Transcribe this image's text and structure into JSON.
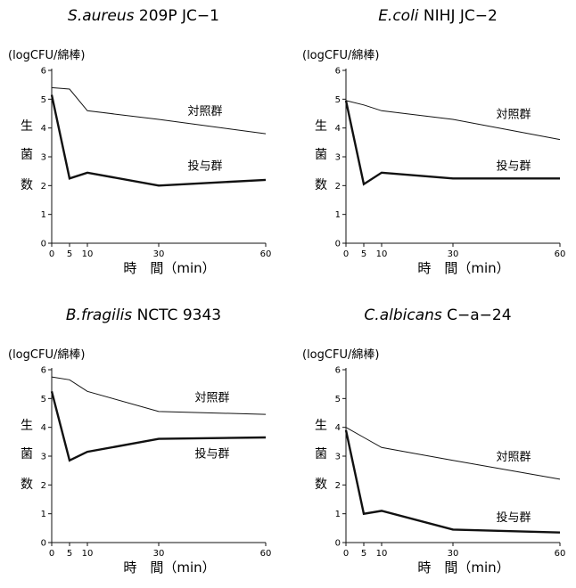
{
  "chart_data": [
    {
      "type": "line",
      "title_italic": "S.aureus",
      "title_rest": " 209P JC−1",
      "unit": "(logCFU/綿棒)",
      "ylabel_chars": [
        "生",
        "菌",
        "数"
      ],
      "xlabel": "時　間（min）",
      "xticks": [
        0,
        5,
        10,
        30,
        60
      ],
      "yticks": [
        0,
        1,
        2,
        3,
        4,
        5,
        6
      ],
      "xlim": [
        0,
        60
      ],
      "ylim": [
        0,
        6
      ],
      "series": [
        {
          "name": "対照群",
          "x": [
            0,
            5,
            10,
            30,
            60
          ],
          "y": [
            5.4,
            5.35,
            4.6,
            4.3,
            3.8
          ],
          "label_x": 43,
          "label_y": 4.45
        },
        {
          "name": "投与群",
          "x": [
            0,
            5,
            10,
            30,
            60
          ],
          "y": [
            5.15,
            2.25,
            2.45,
            2.0,
            2.2
          ],
          "label_x": 43,
          "label_y": 2.55
        }
      ]
    },
    {
      "type": "line",
      "title_italic": "E.coli",
      "title_rest": " NIHJ  JC−2",
      "unit": "(logCFU/綿棒)",
      "ylabel_chars": [
        "生",
        "菌",
        "数"
      ],
      "xlabel": "時　間（min）",
      "xticks": [
        0,
        5,
        10,
        30,
        60
      ],
      "yticks": [
        0,
        1,
        2,
        3,
        4,
        5,
        6
      ],
      "xlim": [
        0,
        60
      ],
      "ylim": [
        0,
        6
      ],
      "series": [
        {
          "name": "対照群",
          "x": [
            0,
            5,
            10,
            30,
            60
          ],
          "y": [
            4.95,
            4.8,
            4.6,
            4.3,
            3.6
          ],
          "label_x": 47,
          "label_y": 4.35
        },
        {
          "name": "投与群",
          "x": [
            0,
            5,
            10,
            30,
            60
          ],
          "y": [
            4.95,
            2.05,
            2.45,
            2.25,
            2.25
          ],
          "label_x": 47,
          "label_y": 2.55
        }
      ]
    },
    {
      "type": "line",
      "title_italic": "B.fragilis",
      "title_rest": "  NCTC 9343",
      "unit": "(logCFU/綿棒)",
      "ylabel_chars": [
        "生",
        "菌",
        "数"
      ],
      "xlabel": "時　間（min）",
      "xticks": [
        0,
        5,
        10,
        30,
        60
      ],
      "yticks": [
        0,
        1,
        2,
        3,
        4,
        5,
        6
      ],
      "xlim": [
        0,
        60
      ],
      "ylim": [
        0,
        6
      ],
      "series": [
        {
          "name": "対照群",
          "x": [
            0,
            5,
            10,
            30,
            60
          ],
          "y": [
            5.75,
            5.65,
            5.25,
            4.55,
            4.45
          ],
          "label_x": 45,
          "label_y": 4.9
        },
        {
          "name": "投与群",
          "x": [
            0,
            5,
            10,
            30,
            60
          ],
          "y": [
            5.25,
            2.85,
            3.15,
            3.6,
            3.65
          ],
          "label_x": 45,
          "label_y": 2.95
        }
      ]
    },
    {
      "type": "line",
      "title_italic": "C.albicans",
      "title_rest": " C−a−24",
      "unit": "(logCFU/綿棒)",
      "ylabel_chars": [
        "生",
        "菌",
        "数"
      ],
      "xlabel": "時　間（min）",
      "xticks": [
        0,
        5,
        10,
        30,
        60
      ],
      "yticks": [
        0,
        1,
        2,
        3,
        4,
        5,
        6
      ],
      "xlim": [
        0,
        60
      ],
      "ylim": [
        0,
        6
      ],
      "series": [
        {
          "name": "対照群",
          "x": [
            0,
            5,
            10,
            30,
            60
          ],
          "y": [
            4.0,
            3.65,
            3.3,
            2.85,
            2.2
          ],
          "label_x": 47,
          "label_y": 2.85
        },
        {
          "name": "投与群",
          "x": [
            0,
            5,
            10,
            30,
            60
          ],
          "y": [
            3.9,
            1.0,
            1.1,
            0.45,
            0.35
          ],
          "label_x": 47,
          "label_y": 0.75
        }
      ]
    }
  ]
}
